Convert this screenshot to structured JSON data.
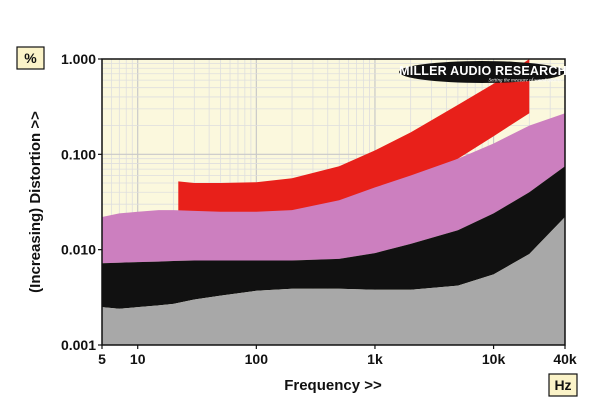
{
  "chart_data": {
    "type": "area",
    "x_scale": "log",
    "y_scale": "log",
    "xlim": [
      5,
      40000
    ],
    "ylim": [
      0.001,
      1.0
    ],
    "xlabel": "Frequency >>",
    "ylabel": "(Increasing) Distortion >>",
    "x_unit": "Hz",
    "y_unit": "%",
    "x_ticks": [
      {
        "value": 5,
        "label": "5"
      },
      {
        "value": 10,
        "label": "10"
      },
      {
        "value": 100,
        "label": "100"
      },
      {
        "value": 1000,
        "label": "1k"
      },
      {
        "value": 10000,
        "label": "10k"
      },
      {
        "value": 40000,
        "label": "40k"
      }
    ],
    "y_ticks": [
      {
        "value": 0.001,
        "label": "0.001"
      },
      {
        "value": 0.01,
        "label": "0.010"
      },
      {
        "value": 0.1,
        "label": "0.100"
      },
      {
        "value": 1.0,
        "label": "1.000"
      }
    ],
    "grid": true,
    "logo": {
      "main": "MILLER AUDIO RESEARCH",
      "sub": "Setting the measure of sound quality"
    },
    "series": [
      {
        "color": "#e8201a",
        "x": [
          22,
          22,
          30,
          50,
          100,
          200,
          500,
          1000,
          2000,
          5000,
          10000,
          20000,
          20000,
          10000,
          5000,
          2000,
          1000,
          500,
          200,
          100,
          50,
          30
        ],
        "y": [
          0.0205,
          0.052,
          0.05,
          0.05,
          0.051,
          0.056,
          0.075,
          0.11,
          0.17,
          0.33,
          0.55,
          1.0,
          0.27,
          0.155,
          0.09,
          0.052,
          0.036,
          0.027,
          0.023,
          0.022,
          0.0215,
          0.021
        ],
        "closed": true
      },
      {
        "color": "#cc7fbf",
        "x": [
          5,
          7,
          10,
          15,
          20,
          30,
          50,
          100,
          200,
          500,
          1000,
          2000,
          5000,
          10000,
          20000,
          40000
        ],
        "upper": [
          0.022,
          0.024,
          0.025,
          0.026,
          0.026,
          0.0255,
          0.025,
          0.025,
          0.026,
          0.033,
          0.045,
          0.06,
          0.09,
          0.13,
          0.2,
          0.27
        ],
        "lower": [
          0.0072,
          0.0073,
          0.0074,
          0.0075,
          0.0076,
          0.0077,
          0.0077,
          0.0077,
          0.0077,
          0.008,
          0.0092,
          0.0115,
          0.016,
          0.024,
          0.04,
          0.075
        ]
      },
      {
        "color": "#111111",
        "x": [
          5,
          7,
          10,
          15,
          20,
          30,
          50,
          100,
          200,
          500,
          1000,
          2000,
          5000,
          10000,
          20000,
          40000
        ],
        "upper": [
          0.0072,
          0.0073,
          0.0074,
          0.0075,
          0.0076,
          0.0077,
          0.0077,
          0.0077,
          0.0077,
          0.008,
          0.0092,
          0.0115,
          0.016,
          0.024,
          0.04,
          0.075
        ],
        "lower": [
          0.0025,
          0.0024,
          0.0025,
          0.0026,
          0.0027,
          0.003,
          0.0033,
          0.0037,
          0.0039,
          0.0039,
          0.0038,
          0.0038,
          0.0042,
          0.0055,
          0.009,
          0.022
        ]
      },
      {
        "color": "#a8a8a8",
        "x": [
          5,
          7,
          10,
          15,
          20,
          30,
          50,
          100,
          200,
          500,
          1000,
          2000,
          5000,
          10000,
          20000,
          40000
        ],
        "upper": [
          0.0025,
          0.0024,
          0.0025,
          0.0026,
          0.0027,
          0.003,
          0.0033,
          0.0037,
          0.0039,
          0.0039,
          0.0038,
          0.0038,
          0.0042,
          0.0055,
          0.009,
          0.022
        ],
        "lower": [
          0.001,
          0.001,
          0.001,
          0.001,
          0.001,
          0.001,
          0.001,
          0.001,
          0.001,
          0.001,
          0.001,
          0.001,
          0.001,
          0.001,
          0.001,
          0.001
        ]
      }
    ],
    "colors": {
      "plot_background": "#fbf8dd",
      "grid_major": "#c9c9c9",
      "grid_minor": "#dedede",
      "unit_box": "#fbf3c8"
    }
  }
}
